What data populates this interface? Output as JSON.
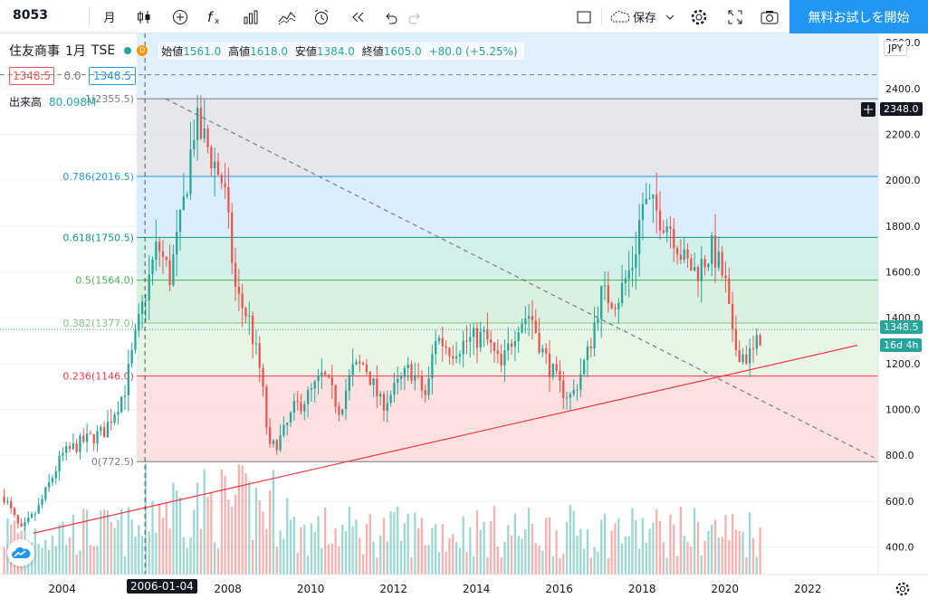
{
  "toolbar": {
    "symbol": "8053",
    "interval": "月",
    "save_label": "保存",
    "cta_label": "無料お試しを開始"
  },
  "legend": {
    "name": "住友商事",
    "interval": "1月",
    "exchange": "TSE",
    "o_label": "始値",
    "o": "1561.0",
    "h_label": "高値",
    "h": "1618.0",
    "l_label": "安値",
    "l": "1384.0",
    "c_label": "終値",
    "c": "1605.0",
    "change": "+80.0 (+5.25%)",
    "badge": "D"
  },
  "price_boxes": {
    "bid": "1348.5",
    "spread": "0.0",
    "ask": "1348.5"
  },
  "volume": {
    "label": "出来高",
    "value": "80.098M"
  },
  "axis": {
    "currency": "JPY",
    "y_ticks": [
      "400.0",
      "600.0",
      "800.0",
      "1000.0",
      "1200.0",
      "1400.0",
      "1600.0",
      "1800.0",
      "2000.0",
      "2200.0",
      "2400.0"
    ],
    "top_partial": "2600.0",
    "crosshair_price": "2348.0",
    "last_price": "1348.5",
    "countdown": "16d 4h",
    "x_ticks": [
      "2004",
      "2008",
      "2010",
      "2012",
      "2014",
      "2016",
      "2018",
      "2020",
      "2022"
    ],
    "crosshair_date": "2006-01-04"
  },
  "colors": {
    "up": "#26a69a",
    "down": "#ef5350",
    "accent": "#2196f3"
  },
  "chart_data": {
    "type": "candlestick",
    "x_range": [
      2002.5,
      2023.7
    ],
    "y_range": [
      280,
      2640
    ],
    "fibonacci": {
      "levels": [
        {
          "ratio": "1",
          "price": 2355.5,
          "label": "1(2355.5)",
          "color": "#787b86"
        },
        {
          "ratio": "0.786",
          "price": 2016.5,
          "label": "0.786(2016.5)",
          "color": "#2196f3"
        },
        {
          "ratio": "0.618",
          "price": 1750.5,
          "label": "0.618(1750.5)",
          "color": "#089981"
        },
        {
          "ratio": "0.5",
          "price": 1564.0,
          "label": "0.5(1564.0)",
          "color": "#4caf50"
        },
        {
          "ratio": "0.382",
          "price": 1377.0,
          "label": "0.382(1377.0)",
          "color": "#81c784"
        },
        {
          "ratio": "0.236",
          "price": 1146.0,
          "label": "0.236(1146.0)",
          "color": "#f23645"
        },
        {
          "ratio": "0",
          "price": 772.5,
          "label": "0(772.5)",
          "color": "#787b86"
        }
      ]
    },
    "trendlines": [
      {
        "from": [
          2003.3,
          460
        ],
        "to": [
          2023.2,
          1280
        ],
        "color": "#f23645",
        "style": "solid"
      },
      {
        "from": [
          2006.5,
          2355
        ],
        "to": [
          2023.6,
          790
        ],
        "color": "#787b86",
        "style": "dashed"
      }
    ],
    "top_dashed_price": 2460,
    "last_price": 1348.5,
    "crosshair_x": 2006.0,
    "anchors": [
      [
        2002.6,
        620
      ],
      [
        2003.0,
        470
      ],
      [
        2003.4,
        560
      ],
      [
        2004.0,
        800
      ],
      [
        2004.5,
        860
      ],
      [
        2005.0,
        900
      ],
      [
        2005.5,
        1080
      ],
      [
        2006.0,
        1500
      ],
      [
        2006.3,
        1720
      ],
      [
        2006.6,
        1580
      ],
      [
        2006.9,
        1850
      ],
      [
        2007.2,
        2250
      ],
      [
        2007.5,
        2150
      ],
      [
        2007.9,
        1980
      ],
      [
        2008.2,
        1500
      ],
      [
        2008.5,
        1400
      ],
      [
        2008.8,
        1150
      ],
      [
        2009.0,
        820
      ],
      [
        2009.3,
        880
      ],
      [
        2009.6,
        1000
      ],
      [
        2010.0,
        1070
      ],
      [
        2010.3,
        1150
      ],
      [
        2010.7,
        1000
      ],
      [
        2011.0,
        1170
      ],
      [
        2011.3,
        1200
      ],
      [
        2011.7,
        1020
      ],
      [
        2012.0,
        1080
      ],
      [
        2012.4,
        1180
      ],
      [
        2012.8,
        1050
      ],
      [
        2013.0,
        1320
      ],
      [
        2013.4,
        1260
      ],
      [
        2013.8,
        1300
      ],
      [
        2014.2,
        1320
      ],
      [
        2014.6,
        1180
      ],
      [
        2015.0,
        1380
      ],
      [
        2015.3,
        1420
      ],
      [
        2015.6,
        1250
      ],
      [
        2016.0,
        1100
      ],
      [
        2016.3,
        1050
      ],
      [
        2016.7,
        1250
      ],
      [
        2017.0,
        1500
      ],
      [
        2017.4,
        1480
      ],
      [
        2017.8,
        1650
      ],
      [
        2018.0,
        1900
      ],
      [
        2018.3,
        1870
      ],
      [
        2018.7,
        1800
      ],
      [
        2019.0,
        1650
      ],
      [
        2019.3,
        1600
      ],
      [
        2019.7,
        1700
      ],
      [
        2020.0,
        1560
      ],
      [
        2020.2,
        1280
      ],
      [
        2020.5,
        1230
      ],
      [
        2020.7,
        1250
      ],
      [
        2020.9,
        1348
      ]
    ],
    "volume_max_scale": 780000000
  }
}
